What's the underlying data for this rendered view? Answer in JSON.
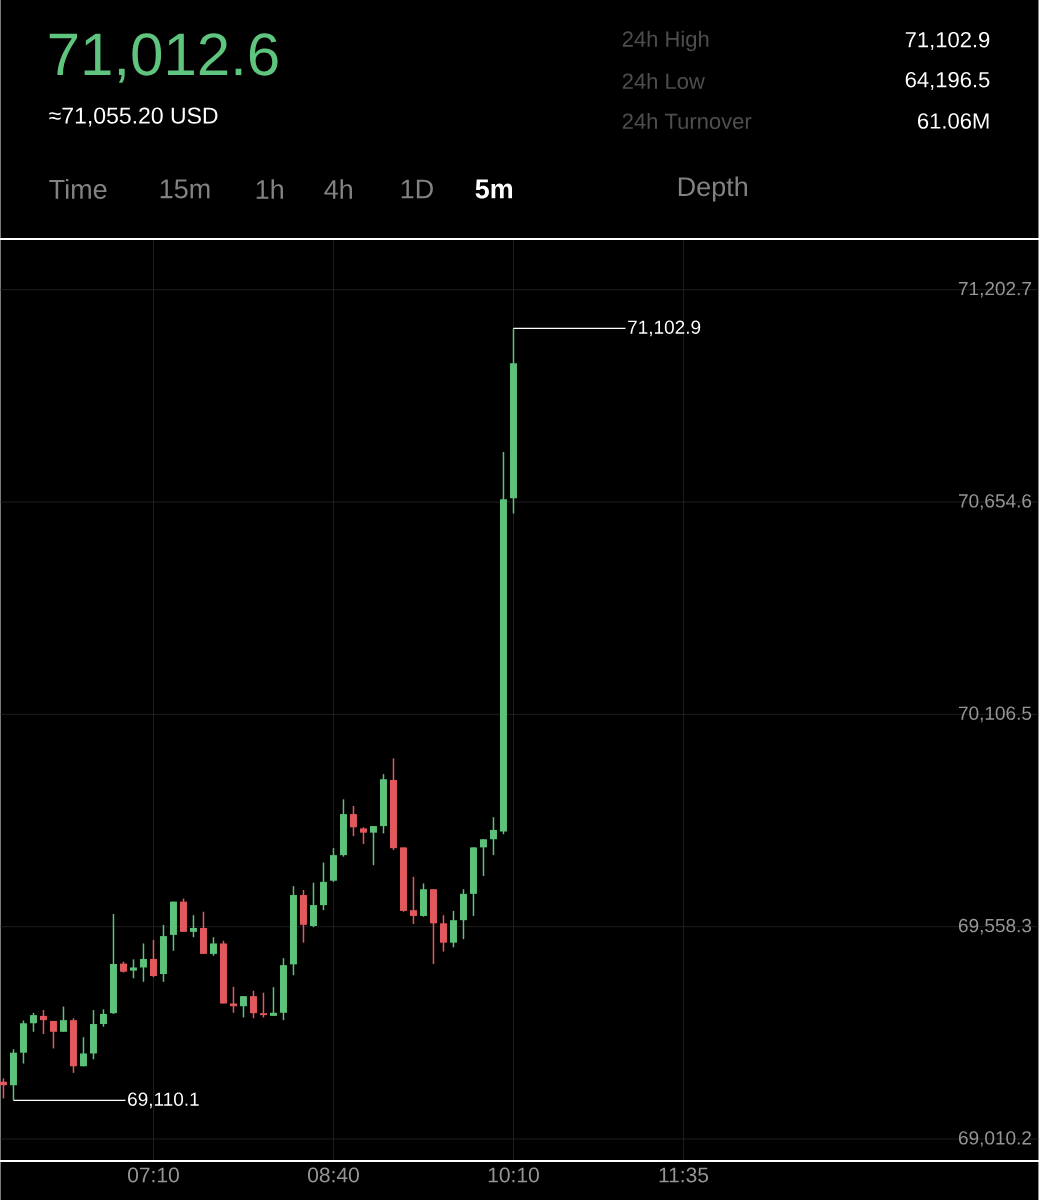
{
  "chart_data": {
    "type": "candlestick",
    "title": "71,012.6",
    "subtitle": "≈71,055.20 USD",
    "x": [
      5.9167,
      6.0,
      6.0833,
      6.1667,
      6.25,
      6.3333,
      6.4167,
      6.5,
      6.5833,
      6.6667,
      6.75,
      6.8333,
      6.9167,
      7.0,
      7.0833,
      7.1667,
      7.25,
      7.3333,
      7.4167,
      7.5,
      7.5833,
      7.6667,
      7.75,
      7.8333,
      7.9167,
      8.0,
      8.0833,
      8.1667,
      8.25,
      8.3333,
      8.4167,
      8.5,
      8.5833,
      8.6667,
      8.75,
      8.8333,
      8.9167,
      9.0,
      9.0833,
      9.1667,
      9.25,
      9.3333,
      9.4167,
      9.5,
      9.5833,
      9.6667,
      9.75,
      9.8333,
      9.9167,
      10.0,
      10.0833,
      10.1667
    ],
    "ohlc": [
      [
        69158,
        69167,
        69115,
        69149
      ],
      [
        69149,
        69242,
        69110.1,
        69233
      ],
      [
        69233,
        69316,
        69205,
        69309
      ],
      [
        69309,
        69336,
        69287,
        69330
      ],
      [
        69328,
        69343,
        69281,
        69317
      ],
      [
        69315,
        69315,
        69244,
        69287
      ],
      [
        69287,
        69352,
        69287,
        69317
      ],
      [
        69317,
        69322,
        69181,
        69198
      ],
      [
        69198,
        69273,
        69198,
        69231
      ],
      [
        69231,
        69343,
        69216,
        69307
      ],
      [
        69307,
        69345,
        69300,
        69333
      ],
      [
        69335,
        69591,
        69333,
        69462
      ],
      [
        69463,
        69468,
        69440,
        69442
      ],
      [
        69445,
        69474,
        69425,
        69453
      ],
      [
        69453,
        69515,
        69416,
        69475
      ],
      [
        69475,
        69524,
        69428,
        69431
      ],
      [
        69436,
        69563,
        69416,
        69534
      ],
      [
        69537,
        69623,
        69496,
        69623
      ],
      [
        69623,
        69631,
        69545,
        69545
      ],
      [
        69545,
        69588,
        69531,
        69555
      ],
      [
        69555,
        69597,
        69488,
        69488
      ],
      [
        69488,
        69531,
        69483,
        69515
      ],
      [
        69515,
        69522,
        69360,
        69360
      ],
      [
        69360,
        69403,
        69336,
        69353
      ],
      [
        69353,
        69379,
        69324,
        69379
      ],
      [
        69379,
        69393,
        69322,
        69335
      ],
      [
        69335,
        69388,
        69324,
        69330
      ],
      [
        69328,
        69402,
        69328,
        69336
      ],
      [
        69336,
        69477,
        69317,
        69459
      ],
      [
        69461,
        69663,
        69433,
        69640
      ],
      [
        69640,
        69653,
        69517,
        69563
      ],
      [
        69560,
        69672,
        69557,
        69614
      ],
      [
        69614,
        69724,
        69601,
        69674
      ],
      [
        69677,
        69761,
        69674,
        69743
      ],
      [
        69743,
        69887,
        69739,
        69849
      ],
      [
        69849,
        69870,
        69792,
        69815
      ],
      [
        69812,
        69815,
        69772,
        69801
      ],
      [
        69801,
        69818,
        69717,
        69818
      ],
      [
        69818,
        69952,
        69799,
        69939
      ],
      [
        69937,
        69993,
        69756,
        69761
      ],
      [
        69763,
        69763,
        69597,
        69599
      ],
      [
        69601,
        69687,
        69565,
        69586
      ],
      [
        69586,
        69670,
        69584,
        69655
      ],
      [
        69655,
        69655,
        69462,
        69567
      ],
      [
        69567,
        69588,
        69494,
        69517
      ],
      [
        69517,
        69599,
        69505,
        69575
      ],
      [
        69575,
        69655,
        69526,
        69643
      ],
      [
        69643,
        69763,
        69586,
        69763
      ],
      [
        69763,
        69784,
        69689,
        69784
      ],
      [
        69784,
        69841,
        69743,
        69808
      ],
      [
        69804,
        70784,
        69797,
        70662
      ],
      [
        70664,
        71102.9,
        70625,
        71012.6
      ]
    ],
    "colors": [
      "#e2585c",
      "#5cc27a",
      "#5cc27a",
      "#5cc27a",
      "#e2585c",
      "#e2585c",
      "#5cc27a",
      "#e2585c",
      "#5cc27a",
      "#5cc27a",
      "#5cc27a",
      "#5cc27a",
      "#e2585c",
      "#5cc27a",
      "#5cc27a",
      "#e2585c",
      "#5cc27a",
      "#5cc27a",
      "#e2585c",
      "#5cc27a",
      "#e2585c",
      "#5cc27a",
      "#e2585c",
      "#e2585c",
      "#5cc27a",
      "#e2585c",
      "#e2585c",
      "#5cc27a",
      "#5cc27a",
      "#5cc27a",
      "#e2585c",
      "#5cc27a",
      "#5cc27a",
      "#5cc27a",
      "#5cc27a",
      "#e2585c",
      "#e2585c",
      "#5cc27a",
      "#5cc27a",
      "#e2585c",
      "#e2585c",
      "#e2585c",
      "#5cc27a",
      "#e2585c",
      "#e2585c",
      "#5cc27a",
      "#5cc27a",
      "#5cc27a",
      "#5cc27a",
      "#5cc27a",
      "#5cc27a",
      "#5cc27a"
    ],
    "xlim": [
      5.8917,
      14.5417
    ],
    "xticks": [
      {
        "value": 7.1667,
        "label": "07:10"
      },
      {
        "value": 8.6667,
        "label": "08:40"
      },
      {
        "value": 10.1667,
        "label": "10:10"
      },
      {
        "value": 11.5833,
        "label": "11:35"
      }
    ],
    "ylim": [
      68956,
      71331
    ],
    "yticks": [
      {
        "value": 69010.2,
        "label": "69,010.2"
      },
      {
        "value": 69558.3,
        "label": "69,558.3"
      },
      {
        "value": 70106.5,
        "label": "70,106.5"
      },
      {
        "value": 70654.6,
        "label": "70,654.6"
      },
      {
        "value": 71202.7,
        "label": "71,202.7"
      }
    ],
    "grid": true,
    "annotations": [
      "24h High",
      "71,102.9",
      "24h Low",
      "64,196.5",
      "24h Turnover",
      "61.06M",
      "Time",
      "15m",
      "1h",
      "4h",
      "1D",
      "5m",
      "Depth",
      {
        "text": "71,102.9",
        "x": 10.1667,
        "y": 71102.9
      },
      {
        "text": "69,110.1",
        "x": 6.0,
        "y": 69110.1
      }
    ]
  }
}
